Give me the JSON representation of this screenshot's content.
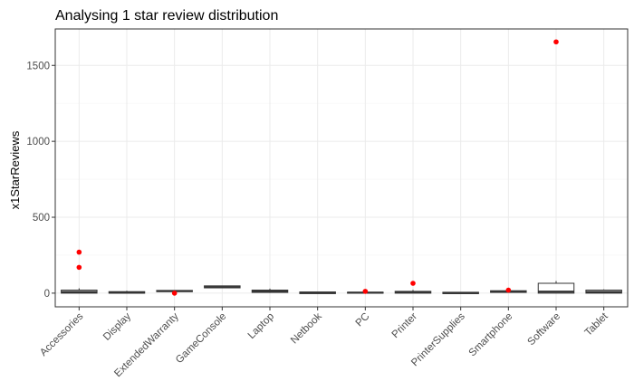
{
  "chart_data": {
    "type": "box",
    "title": "Analysing 1 star review distribution",
    "xlabel": "",
    "ylabel": "x1StarReviews",
    "categories": [
      "Accessories",
      "Display",
      "ExtendedWarranty",
      "GameConsole",
      "Laptop",
      "Netbook",
      "PC",
      "Printer",
      "PrinterSupplies",
      "Smartphone",
      "Software",
      "Tablet"
    ],
    "yticks": [
      0,
      500,
      1000,
      1500
    ],
    "ylim": [
      -90,
      1740
    ],
    "grid": true,
    "boxes": [
      {
        "q1": 0,
        "median": 8,
        "q3": 20,
        "whisker_low": 0,
        "whisker_high": 32,
        "outliers": [
          170,
          270
        ]
      },
      {
        "q1": 0,
        "median": 3,
        "q3": 10,
        "whisker_low": 0,
        "whisker_high": 16,
        "outliers": []
      },
      {
        "q1": 10,
        "median": 14,
        "q3": 18,
        "whisker_low": 8,
        "whisker_high": 20,
        "outliers": [
          0
        ]
      },
      {
        "q1": 35,
        "median": 40,
        "q3": 48,
        "whisker_low": 33,
        "whisker_high": 50,
        "outliers": []
      },
      {
        "q1": 5,
        "median": 12,
        "q3": 20,
        "whisker_low": 2,
        "whisker_high": 30,
        "outliers": []
      },
      {
        "q1": 0,
        "median": 2,
        "q3": 5,
        "whisker_low": 0,
        "whisker_high": 7,
        "outliers": []
      },
      {
        "q1": 0,
        "median": 3,
        "q3": 6,
        "whisker_low": 0,
        "whisker_high": 10,
        "outliers": [
          12
        ]
      },
      {
        "q1": 0,
        "median": 5,
        "q3": 12,
        "whisker_low": 0,
        "whisker_high": 22,
        "outliers": [
          65
        ]
      },
      {
        "q1": 0,
        "median": 1,
        "q3": 3,
        "whisker_low": 0,
        "whisker_high": 5,
        "outliers": []
      },
      {
        "q1": 5,
        "median": 10,
        "q3": 16,
        "whisker_low": 2,
        "whisker_high": 20,
        "outliers": [
          20
        ]
      },
      {
        "q1": 0,
        "median": 10,
        "q3": 65,
        "whisker_low": 0,
        "whisker_high": 80,
        "outliers": [
          1655
        ]
      },
      {
        "q1": 0,
        "median": 8,
        "q3": 20,
        "whisker_low": 0,
        "whisker_high": 25,
        "outliers": []
      }
    ],
    "colors": {
      "outlier": "#ff0000",
      "box_border": "#333333",
      "grid_major": "#ebebeb",
      "grid_minor": "#f5f5f5",
      "panel_border": "#333333"
    }
  }
}
